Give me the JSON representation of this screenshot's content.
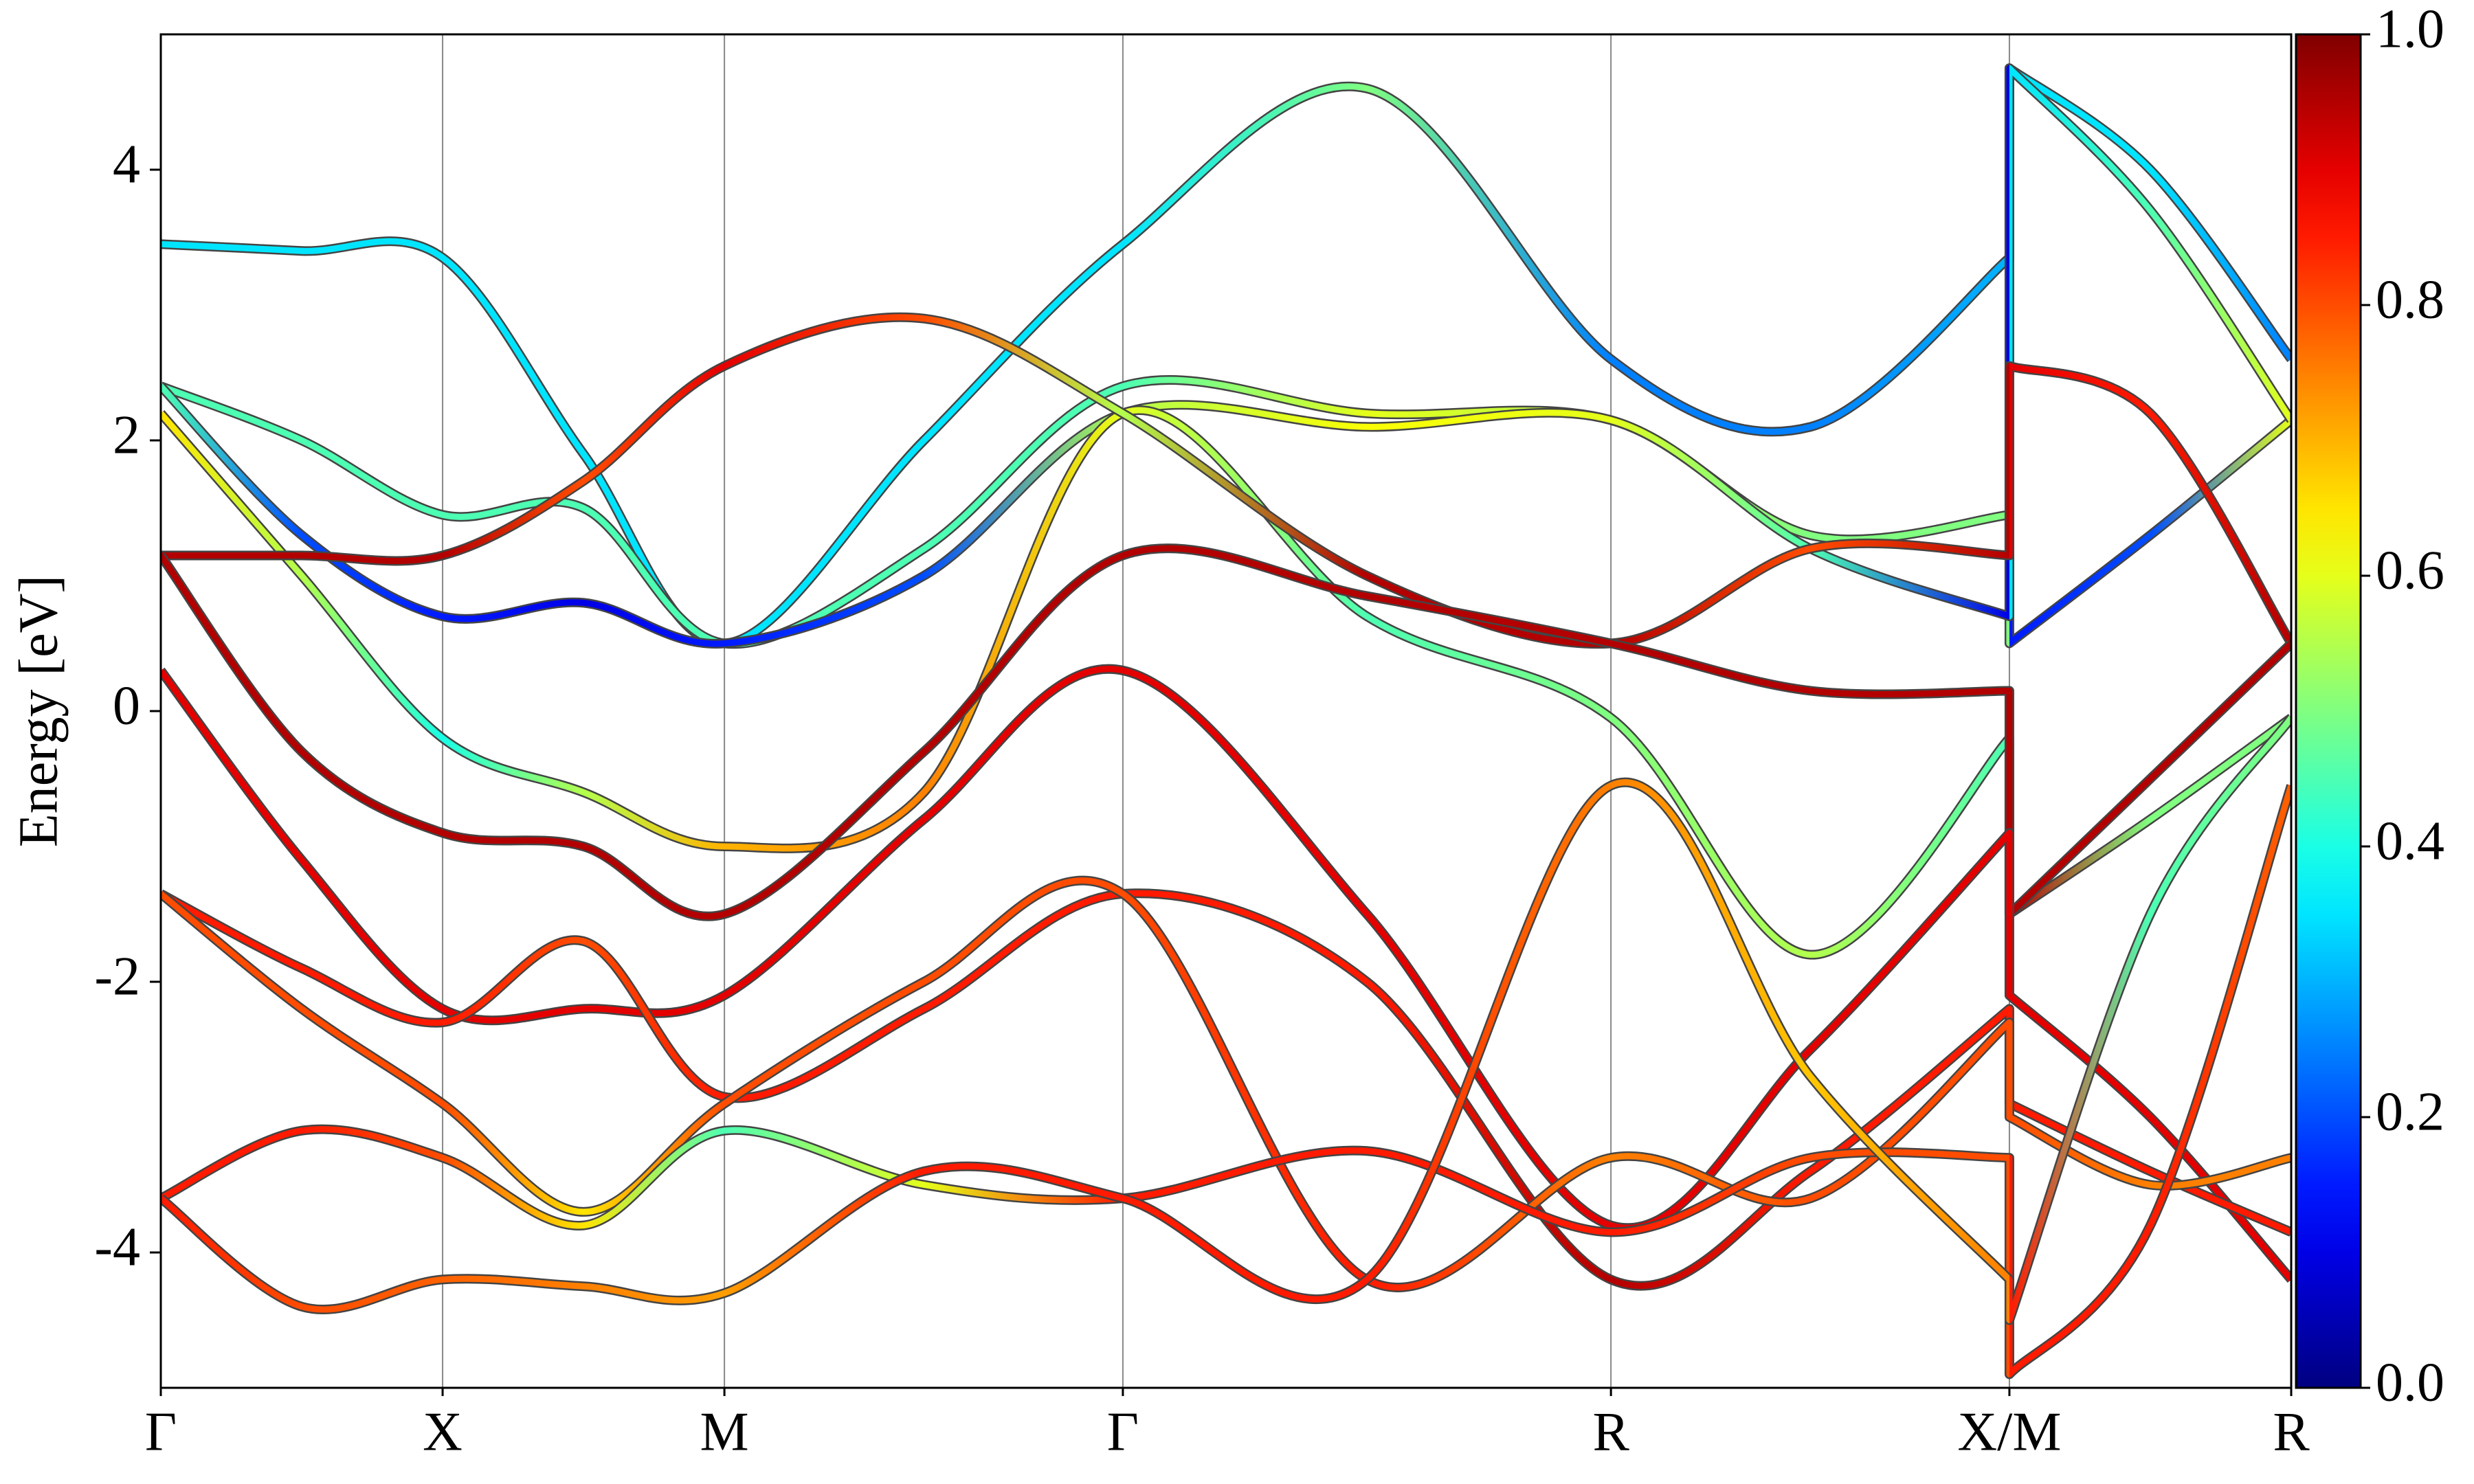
{
  "chart_data": {
    "type": "line",
    "ylabel": "Energy [eV]",
    "x": [
      0,
      0.25,
      0.5,
      0.75,
      1.0,
      1.354,
      1.707,
      2.14,
      2.573,
      2.927,
      3.28,
      3.28,
      3.53,
      3.78
    ],
    "xlim": [
      0,
      3.78
    ],
    "xticks": [
      {
        "value": 0,
        "label": "Γ"
      },
      {
        "value": 0.5,
        "label": "X"
      },
      {
        "value": 1.0,
        "label": "M"
      },
      {
        "value": 1.707,
        "label": "Γ"
      },
      {
        "value": 2.573,
        "label": "R"
      },
      {
        "value": 3.28,
        "label": "X/M"
      },
      {
        "value": 3.78,
        "label": "R"
      }
    ],
    "ylim": [
      -5,
      5
    ],
    "yticks": [
      -4,
      -2,
      0,
      2,
      4
    ],
    "colorbar": {
      "colormap": "jet",
      "clim": [
        0,
        1
      ],
      "ticks": [
        {
          "value": 0,
          "label": "0.0"
        },
        0.2,
        0.4,
        0.6,
        0.8,
        {
          "value": 1,
          "label": "1.0"
        }
      ]
    },
    "series": [
      {
        "values": [
          3.45,
          3.4,
          3.35,
          1.9,
          0.5,
          2.0,
          3.45,
          4.6,
          2.6,
          2.1,
          3.35,
          4.75,
          4.0,
          2.6
        ],
        "weights": [
          0.35,
          0.35,
          0.35,
          0.35,
          0.35,
          0.35,
          0.35,
          0.5,
          0.25,
          0.25,
          0.3,
          0.35,
          0.35,
          0.25
        ]
      },
      {
        "values": [
          2.4,
          2.0,
          1.45,
          1.5,
          0.5,
          1.2,
          2.4,
          2.2,
          2.15,
          1.3,
          1.45,
          0.5,
          1.3,
          2.15
        ],
        "weights": [
          0.45,
          0.45,
          0.45,
          0.45,
          0.45,
          0.45,
          0.45,
          0.6,
          0.55,
          0.5,
          0.5,
          0.15,
          0.2,
          0.6
        ]
      },
      {
        "values": [
          2.4,
          1.3,
          0.7,
          0.8,
          0.5,
          1.0,
          2.2,
          2.1,
          2.15,
          1.2,
          0.7,
          4.75,
          3.7,
          2.15
        ],
        "weights": [
          0.45,
          0.2,
          0.15,
          0.1,
          0.15,
          0.2,
          0.55,
          0.62,
          0.6,
          0.45,
          0.1,
          0.35,
          0.45,
          0.6
        ]
      },
      {
        "values": [
          2.2,
          1.0,
          -0.2,
          -0.6,
          -1.0,
          -0.6,
          2.2,
          0.7,
          -0.05,
          -1.8,
          -0.2,
          -1.5,
          -0.8,
          -0.05
        ],
        "weights": [
          0.65,
          0.55,
          0.4,
          0.55,
          0.7,
          0.75,
          0.6,
          0.45,
          0.5,
          0.55,
          0.45,
          0.95,
          0.5,
          0.5
        ]
      },
      {
        "values": [
          1.15,
          1.15,
          1.15,
          1.7,
          2.55,
          2.9,
          2.2,
          1.0,
          0.5,
          1.2,
          1.15,
          2.55,
          2.2,
          0.5
        ],
        "weights": [
          0.95,
          0.95,
          0.95,
          0.8,
          0.9,
          0.8,
          0.55,
          0.95,
          0.95,
          0.8,
          0.95,
          0.9,
          0.85,
          0.95
        ]
      },
      {
        "values": [
          1.15,
          -0.3,
          -0.9,
          -1.0,
          -1.5,
          -0.3,
          1.15,
          0.85,
          0.5,
          0.15,
          0.15,
          -1.5,
          -0.5,
          0.5
        ],
        "weights": [
          0.95,
          0.95,
          0.95,
          0.95,
          0.95,
          0.95,
          0.95,
          0.95,
          0.95,
          0.95,
          0.95,
          0.95,
          0.95,
          0.95
        ]
      },
      {
        "values": [
          0.3,
          -1.1,
          -2.2,
          -2.2,
          -2.1,
          -0.8,
          0.3,
          -1.5,
          -3.8,
          -2.5,
          -0.9,
          -2.1,
          -3.0,
          -4.2
        ],
        "weights": [
          0.9,
          0.9,
          0.9,
          0.9,
          0.9,
          0.9,
          0.9,
          0.9,
          0.9,
          0.9,
          0.9,
          0.9,
          0.9,
          0.9
        ]
      },
      {
        "values": [
          -1.35,
          -1.9,
          -2.3,
          -1.7,
          -2.85,
          -2.2,
          -1.35,
          -2.0,
          -4.2,
          -3.4,
          -2.2,
          -2.9,
          -3.4,
          -3.85
        ],
        "weights": [
          0.85,
          0.85,
          0.85,
          0.8,
          0.85,
          0.85,
          0.85,
          0.85,
          0.95,
          0.85,
          0.85,
          0.85,
          0.85,
          0.85
        ]
      },
      {
        "values": [
          -1.35,
          -2.2,
          -2.9,
          -3.7,
          -2.9,
          -2.0,
          -1.35,
          -4.2,
          -3.3,
          -3.6,
          -2.3,
          -3.0,
          -3.5,
          -3.3
        ],
        "weights": [
          0.8,
          0.8,
          0.8,
          0.65,
          0.8,
          0.8,
          0.8,
          0.85,
          0.75,
          0.8,
          0.8,
          0.8,
          0.75,
          0.75
        ]
      },
      {
        "values": [
          -3.6,
          -3.1,
          -3.3,
          -3.8,
          -3.1,
          -3.5,
          -3.6,
          -3.25,
          -3.85,
          -3.3,
          -3.3,
          -4.9,
          -3.8,
          -0.55
        ],
        "weights": [
          0.85,
          0.85,
          0.8,
          0.65,
          0.45,
          0.6,
          0.85,
          0.85,
          0.85,
          0.8,
          0.8,
          0.85,
          0.85,
          0.78
        ]
      },
      {
        "values": [
          -3.6,
          -4.4,
          -4.2,
          -4.25,
          -4.3,
          -3.4,
          -3.6,
          -4.2,
          -0.55,
          -2.7,
          -4.2,
          -4.5,
          -1.5,
          -0.05
        ],
        "weights": [
          0.85,
          0.8,
          0.78,
          0.75,
          0.72,
          0.85,
          0.85,
          0.85,
          0.75,
          0.68,
          0.75,
          0.85,
          0.45,
          0.5
        ]
      }
    ]
  }
}
